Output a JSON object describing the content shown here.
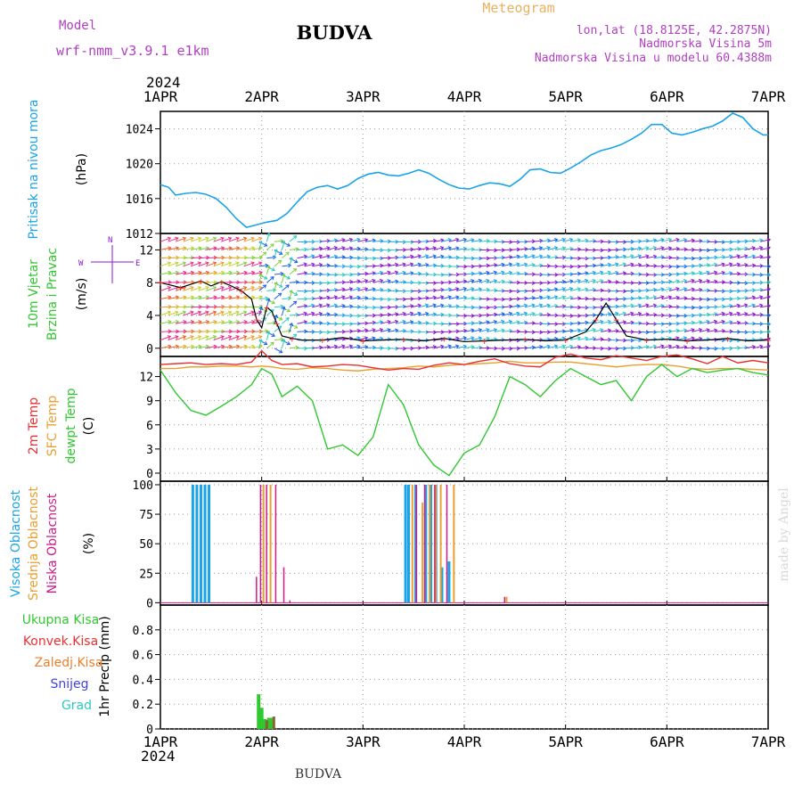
{
  "header": {
    "model_label": "Model",
    "model_name": "wrf-nmm_v3.9.1 e1km",
    "title": "BUDVA",
    "meteogram_label": "Meteogram",
    "coords": "lon,lat (18.8125E, 42.2875N)",
    "elevation": "Nadmorska Visina 5m",
    "model_elevation": "Nadmorska Visina u modelu 60.4388m",
    "watermark": "made by Angel",
    "footer_title": "BUDVA"
  },
  "time_axis": {
    "year": "2024",
    "labels": [
      "1APR",
      "2APR",
      "3APR",
      "4APR",
      "5APR",
      "6APR",
      "7APR"
    ]
  },
  "colors": {
    "pressure": "#1aa3e8",
    "temp2m": "#e83030",
    "sfc": "#e8a030",
    "dewpt": "#30c830",
    "high_cloud": "#1aa3e8",
    "mid_cloud": "#e8a030",
    "low_cloud": "#d01a8a",
    "precip_total": "#30c830",
    "precip_conv": "#e83030",
    "precip_frozen": "#e88030",
    "snow": "#4040e0",
    "grad": "#30c8c0",
    "wind_purple": "#8a1ad0",
    "title_purple": "#b040c0",
    "meteogram_orange": "#e8b060"
  },
  "chart_data": [
    {
      "type": "line",
      "name": "pressure",
      "axis_title": "Pritisak na nivou mora",
      "unit": "(hPa)",
      "ylim": [
        1012,
        1026
      ],
      "yticks": [
        1012,
        1016,
        1020,
        1024
      ],
      "x_days": [
        0,
        0.08,
        0.15,
        0.25,
        0.35,
        0.45,
        0.55,
        0.65,
        0.75,
        0.85,
        0.95,
        1.05,
        1.15,
        1.25,
        1.35,
        1.45,
        1.55,
        1.65,
        1.75,
        1.85,
        1.95,
        2.05,
        2.15,
        2.25,
        2.35,
        2.45,
        2.55,
        2.65,
        2.75,
        2.85,
        2.95,
        3.05,
        3.15,
        3.25,
        3.35,
        3.45,
        3.55,
        3.65,
        3.75,
        3.85,
        3.95,
        4.05,
        4.15,
        4.25,
        4.35,
        4.45,
        4.55,
        4.65,
        4.75,
        4.85,
        4.95,
        5.05,
        5.15,
        5.25,
        5.35,
        5.45,
        5.55,
        5.65,
        5.75,
        5.85,
        5.95,
        6.0
      ],
      "values": [
        1017.6,
        1017.3,
        1016.4,
        1016.6,
        1016.7,
        1016.5,
        1016.0,
        1015.0,
        1013.7,
        1012.7,
        1013.0,
        1013.3,
        1013.5,
        1014.3,
        1015.6,
        1016.8,
        1017.3,
        1017.5,
        1017.1,
        1017.5,
        1018.3,
        1018.8,
        1019.0,
        1018.7,
        1018.6,
        1018.9,
        1019.3,
        1018.9,
        1018.2,
        1017.6,
        1017.2,
        1017.1,
        1017.5,
        1017.8,
        1017.7,
        1017.4,
        1018.2,
        1019.3,
        1019.4,
        1019.0,
        1018.9,
        1019.5,
        1020.2,
        1021.0,
        1021.5,
        1021.8,
        1022.2,
        1022.8,
        1023.5,
        1024.5,
        1024.5,
        1023.5,
        1023.3,
        1023.6,
        1024.0,
        1024.3,
        1024.9,
        1025.8,
        1025.3,
        1024.0,
        1023.3,
        1023.3
      ]
    },
    {
      "type": "line",
      "name": "wind",
      "axis_title": "10m Vjetar",
      "axis_title2": "Brzina i Pravac",
      "unit": "(m/s)",
      "compass": [
        "W",
        "<-",
        "N",
        "->",
        "E"
      ],
      "ylim": [
        -1,
        14
      ],
      "yticks": [
        0,
        4,
        8,
        12
      ],
      "x_days": [
        0,
        0.1,
        0.2,
        0.3,
        0.4,
        0.5,
        0.6,
        0.7,
        0.8,
        0.9,
        0.95,
        1.0,
        1.05,
        1.1,
        1.15,
        1.2,
        1.3,
        1.4,
        1.6,
        1.8,
        2.0,
        2.2,
        2.4,
        2.6,
        2.8,
        3.0,
        3.2,
        3.4,
        3.6,
        3.8,
        4.0,
        4.2,
        4.3,
        4.4,
        4.5,
        4.6,
        4.8,
        5.0,
        5.2,
        5.4,
        5.6,
        5.8,
        6.0
      ],
      "values": [
        8.0,
        7.7,
        7.4,
        7.8,
        8.2,
        7.6,
        8.1,
        7.6,
        7.0,
        6.0,
        3.5,
        2.5,
        5.0,
        4.5,
        3.0,
        1.5,
        1.2,
        1.0,
        1.0,
        1.3,
        0.9,
        1.0,
        1.1,
        0.9,
        1.2,
        0.8,
        0.9,
        1.0,
        1.1,
        0.9,
        1.0,
        2.0,
        3.5,
        5.5,
        3.5,
        1.5,
        1.0,
        1.1,
        0.9,
        1.0,
        1.2,
        0.9,
        1.0
      ]
    },
    {
      "type": "line",
      "name": "temperature",
      "axis_title_t2m": "2m Temp",
      "axis_title_sfc": "SFC Temp",
      "axis_title_dew": "dewpt Temp",
      "unit": "(C)",
      "ylim": [
        -1,
        14.5
      ],
      "yticks": [
        0,
        3,
        6,
        9,
        12
      ],
      "x_days": [
        0,
        0.15,
        0.3,
        0.45,
        0.6,
        0.75,
        0.9,
        1.0,
        1.1,
        1.2,
        1.35,
        1.5,
        1.65,
        1.8,
        1.95,
        2.1,
        2.25,
        2.4,
        2.55,
        2.7,
        2.85,
        3.0,
        3.15,
        3.3,
        3.45,
        3.6,
        3.75,
        3.9,
        4.05,
        4.2,
        4.35,
        4.5,
        4.65,
        4.8,
        4.95,
        5.1,
        5.25,
        5.4,
        5.55,
        5.7,
        5.85,
        6.0
      ],
      "t2m": [
        13.5,
        13.6,
        13.7,
        13.5,
        13.6,
        13.5,
        13.8,
        15.2,
        14.0,
        13.5,
        13.6,
        13.2,
        13.3,
        13.5,
        13.4,
        13.1,
        12.8,
        13.0,
        12.9,
        13.4,
        13.7,
        13.5,
        13.9,
        14.2,
        13.6,
        13.3,
        13.2,
        14.4,
        14.8,
        14.3,
        14.1,
        14.6,
        14.3,
        14.0,
        14.5,
        14.7,
        14.2,
        13.6,
        14.5,
        13.7,
        14.0,
        13.7
      ],
      "sfc": [
        13.0,
        13.0,
        13.2,
        13.2,
        13.3,
        13.3,
        13.2,
        13.3,
        13.2,
        13.0,
        12.9,
        13.1,
        13.0,
        12.8,
        12.7,
        12.9,
        13.0,
        13.1,
        13.3,
        13.2,
        13.4,
        13.5,
        13.6,
        13.7,
        13.9,
        13.7,
        13.7,
        13.8,
        13.8,
        13.6,
        13.4,
        13.2,
        13.4,
        13.5,
        13.5,
        13.3,
        13.0,
        12.9,
        13.0,
        13.0,
        12.9,
        12.8
      ],
      "dewpt": [
        12.8,
        10.0,
        7.8,
        7.2,
        8.3,
        9.5,
        11.0,
        13.0,
        12.3,
        9.5,
        10.8,
        9.0,
        3.0,
        3.5,
        2.2,
        4.5,
        11.0,
        8.5,
        3.5,
        1.0,
        -0.3,
        2.5,
        3.5,
        7.0,
        12.0,
        11.0,
        9.5,
        11.5,
        13.0,
        12.0,
        11.0,
        11.5,
        9.0,
        12.0,
        13.5,
        12.0,
        13.0,
        12.5,
        12.8,
        13.0,
        12.5,
        12.2
      ]
    },
    {
      "type": "bar",
      "name": "clouds",
      "axis_title_high": "Visoka Oblacnost",
      "axis_title_mid": "Srednja Oblacnost",
      "axis_title_low": "Niska Oblacnost",
      "unit": "(%)",
      "ylim": [
        -2,
        103
      ],
      "yticks": [
        0,
        25,
        50,
        75,
        100
      ],
      "high": [
        [
          0.32,
          100
        ],
        [
          0.36,
          100
        ],
        [
          0.4,
          100
        ],
        [
          0.44,
          100
        ],
        [
          0.48,
          100
        ],
        [
          2.42,
          100
        ],
        [
          2.45,
          100
        ],
        [
          2.52,
          100
        ],
        [
          2.62,
          100
        ],
        [
          2.67,
          100
        ],
        [
          2.72,
          100
        ],
        [
          2.78,
          30
        ],
        [
          2.85,
          35
        ]
      ],
      "mid": [
        [
          1.0,
          100
        ],
        [
          1.07,
          100
        ],
        [
          2.47,
          100
        ],
        [
          2.57,
          85
        ],
        [
          2.64,
          100
        ],
        [
          2.7,
          100
        ],
        [
          2.75,
          100
        ],
        [
          2.88,
          100
        ],
        [
          3.4,
          5
        ]
      ],
      "low": [
        [
          0.92,
          22
        ],
        [
          0.96,
          100
        ],
        [
          1.02,
          100
        ],
        [
          1.11,
          100
        ],
        [
          1.19,
          30
        ],
        [
          1.25,
          2
        ],
        [
          2.5,
          100
        ],
        [
          2.58,
          100
        ],
        [
          2.68,
          100
        ],
        [
          2.8,
          100
        ],
        [
          3.37,
          5
        ]
      ]
    },
    {
      "type": "bar",
      "name": "precip",
      "axis_title": "1hr Precip",
      "unit": "(mm)",
      "legend": [
        "Ukupna Kisa",
        "Konvek.Kisa",
        "Zaledj.Kisa",
        "Snijeg",
        "Grad"
      ],
      "ylim": [
        0,
        1.0
      ],
      "yticks": [
        0,
        0.2,
        0.4,
        0.6,
        0.8
      ],
      "ytick_labels": [
        "0",
        "0.2",
        "0.4",
        "0.6",
        "0.8"
      ],
      "total": [
        [
          0.97,
          0.28
        ],
        [
          1.0,
          0.17
        ],
        [
          1.03,
          0.08
        ],
        [
          1.07,
          0.09
        ],
        [
          1.1,
          0.09
        ]
      ],
      "frozen": [
        [
          1.05,
          0.07
        ],
        [
          1.12,
          0.1
        ]
      ]
    }
  ]
}
